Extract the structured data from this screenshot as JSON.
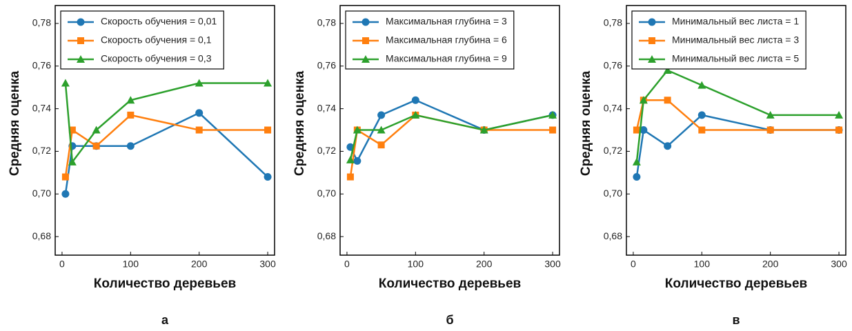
{
  "chart_data": [
    {
      "type": "line",
      "label": "а",
      "xlabel": "Количество деревьев",
      "ylabel": "Средняя оценка",
      "x": [
        5,
        15,
        50,
        100,
        200,
        300
      ],
      "xlim": [
        -10,
        310
      ],
      "ylim": [
        0.6713,
        0.7884
      ],
      "xticks": [
        0,
        100,
        200,
        300
      ],
      "yticks": [
        {
          "value": 0.68,
          "label": "0,68"
        },
        {
          "value": 0.7,
          "label": "0,70"
        },
        {
          "value": 0.72,
          "label": "0,72"
        },
        {
          "value": 0.74,
          "label": "0,74"
        },
        {
          "value": 0.76,
          "label": "0,76"
        },
        {
          "value": 0.78,
          "label": "0,78"
        }
      ],
      "legend": "upper left",
      "series": [
        {
          "name": "Скорость обучения = 0,01",
          "color": "#1f77b4",
          "marker": "circle",
          "values": [
            0.7,
            0.7225,
            0.7225,
            0.7225,
            0.738,
            0.708
          ]
        },
        {
          "name": "Скорость обучения = 0,1",
          "color": "#ff7f0e",
          "marker": "square",
          "values": [
            0.708,
            0.73,
            0.7225,
            0.737,
            0.73,
            0.73
          ]
        },
        {
          "name": "Скорость обучения = 0,3",
          "color": "#2ca02c",
          "marker": "triangle",
          "values": [
            0.752,
            0.715,
            0.73,
            0.744,
            0.752,
            0.752
          ]
        }
      ]
    },
    {
      "type": "line",
      "label": "б",
      "xlabel": "Количество деревьев",
      "ylabel": "Средняя оценка",
      "x": [
        5,
        15,
        50,
        100,
        200,
        300
      ],
      "xlim": [
        -10,
        310
      ],
      "ylim": [
        0.6713,
        0.7884
      ],
      "xticks": [
        0,
        100,
        200,
        300
      ],
      "yticks": [
        {
          "value": 0.68,
          "label": "0,68"
        },
        {
          "value": 0.7,
          "label": "0,70"
        },
        {
          "value": 0.72,
          "label": "0,72"
        },
        {
          "value": 0.74,
          "label": "0,74"
        },
        {
          "value": 0.76,
          "label": "0,76"
        },
        {
          "value": 0.78,
          "label": "0,78"
        }
      ],
      "legend": "upper left",
      "series": [
        {
          "name": "Максимальная глубина = 3",
          "color": "#1f77b4",
          "marker": "circle",
          "values": [
            0.722,
            0.7155,
            0.737,
            0.744,
            0.73,
            0.737
          ]
        },
        {
          "name": "Максимальная глубина = 6",
          "color": "#ff7f0e",
          "marker": "square",
          "values": [
            0.708,
            0.73,
            0.723,
            0.737,
            0.73,
            0.73
          ]
        },
        {
          "name": "Максимальная глубина = 9",
          "color": "#2ca02c",
          "marker": "triangle",
          "values": [
            0.716,
            0.73,
            0.73,
            0.737,
            0.73,
            0.737
          ]
        }
      ]
    },
    {
      "type": "line",
      "label": "в",
      "xlabel": "Количество деревьев",
      "ylabel": "Средняя оценка",
      "x": [
        5,
        15,
        50,
        100,
        200,
        300
      ],
      "xlim": [
        -10,
        310
      ],
      "ylim": [
        0.6713,
        0.7884
      ],
      "xticks": [
        0,
        100,
        200,
        300
      ],
      "yticks": [
        {
          "value": 0.68,
          "label": "0,68"
        },
        {
          "value": 0.7,
          "label": "0,70"
        },
        {
          "value": 0.72,
          "label": "0,72"
        },
        {
          "value": 0.74,
          "label": "0,74"
        },
        {
          "value": 0.76,
          "label": "0,76"
        },
        {
          "value": 0.78,
          "label": "0,78"
        }
      ],
      "legend": "upper left",
      "series": [
        {
          "name": "Минимальный вес листа = 1",
          "color": "#1f77b4",
          "marker": "circle",
          "values": [
            0.708,
            0.73,
            0.7225,
            0.737,
            0.73,
            0.73
          ]
        },
        {
          "name": "Минимальный вес листа = 3",
          "color": "#ff7f0e",
          "marker": "square",
          "values": [
            0.73,
            0.744,
            0.744,
            0.73,
            0.73,
            0.73
          ]
        },
        {
          "name": "Минимальный вес листа = 5",
          "color": "#2ca02c",
          "marker": "triangle",
          "values": [
            0.715,
            0.744,
            0.758,
            0.751,
            0.737,
            0.737
          ]
        }
      ]
    }
  ]
}
